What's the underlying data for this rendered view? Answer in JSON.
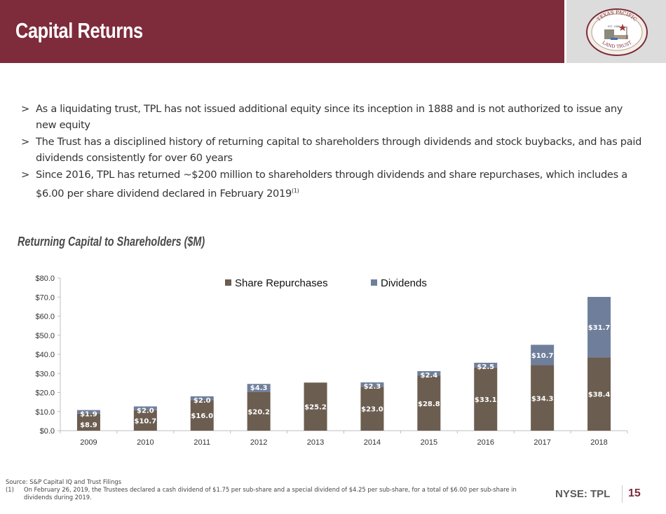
{
  "header": {
    "title": "Capital Returns",
    "logo_text_top": "TEXAS PACIFIC",
    "logo_text_bottom": "LAND TRUST",
    "logo_est": "EST. 1888"
  },
  "bullets": [
    {
      "marker": ">",
      "text": "As a liquidating trust, TPL has not issued additional equity since its inception in 1888 and is not authorized to issue any new equity"
    },
    {
      "marker": ">",
      "text": "The Trust has a disciplined history of returning capital to shareholders through dividends and stock buybacks, and has paid dividends consistently for over 60 years"
    },
    {
      "marker": ">",
      "text": "Since 2016, TPL has returned ~$200 million to shareholders through dividends and share repurchases, which includes a $6.00 per share dividend declared in February 2019",
      "footnote": "(1)"
    }
  ],
  "section_title": "Returning Capital to Shareholders ($M)",
  "chart_data": {
    "type": "bar",
    "stacked": true,
    "title": "Returning Capital to Shareholders ($M)",
    "xlabel": "",
    "ylabel": "",
    "categories": [
      "2009",
      "2010",
      "2011",
      "2012",
      "2013",
      "2014",
      "2015",
      "2016",
      "2017",
      "2018"
    ],
    "series": [
      {
        "name": "Share Repurchases",
        "color": "#6b5d50",
        "values": [
          8.9,
          10.7,
          16.0,
          20.2,
          25.2,
          23.0,
          28.8,
          33.1,
          34.3,
          38.4
        ],
        "labels": [
          "$8.9",
          "$10.7",
          "$16.0",
          "$20.2",
          "$25.2",
          "$23.0",
          "$28.8",
          "$33.1",
          "$34.3",
          "$38.4"
        ]
      },
      {
        "name": "Dividends",
        "color": "#6f7f9b",
        "values": [
          1.9,
          2.0,
          2.0,
          4.3,
          0,
          2.3,
          2.4,
          2.5,
          10.7,
          31.7
        ],
        "labels": [
          "$1.9",
          "$2.0",
          "$2.0",
          "$4.3",
          "",
          "$2.3",
          "$2.4",
          "$2.5",
          "$10.7",
          "$31.7"
        ]
      }
    ],
    "ylim": [
      0,
      80
    ],
    "yticks": [
      0,
      10,
      20,
      30,
      40,
      50,
      60,
      70,
      80
    ],
    "ytick_labels": [
      "$0.0",
      "$10.0",
      "$20.0",
      "$30.0",
      "$40.0",
      "$50.0",
      "$60.0",
      "$70.0",
      "$80.0"
    ],
    "grid": false,
    "legend_position": "top-center"
  },
  "footer": {
    "source": "Source: S&P Capital IQ and Trust Filings",
    "footnote_number": "(1)",
    "footnote_text": "On February 26, 2019, the Trustees declared a cash dividend of $1.75 per sub-share and a special dividend of $4.25 per sub-share, for a total of $6.00 per sub-share in dividends during 2019.",
    "ticker": "NYSE: TPL",
    "page_number": "15"
  },
  "colors": {
    "brand": "#7e2b3c",
    "repurchases": "#6b5d50",
    "dividends": "#6f7f9b"
  }
}
